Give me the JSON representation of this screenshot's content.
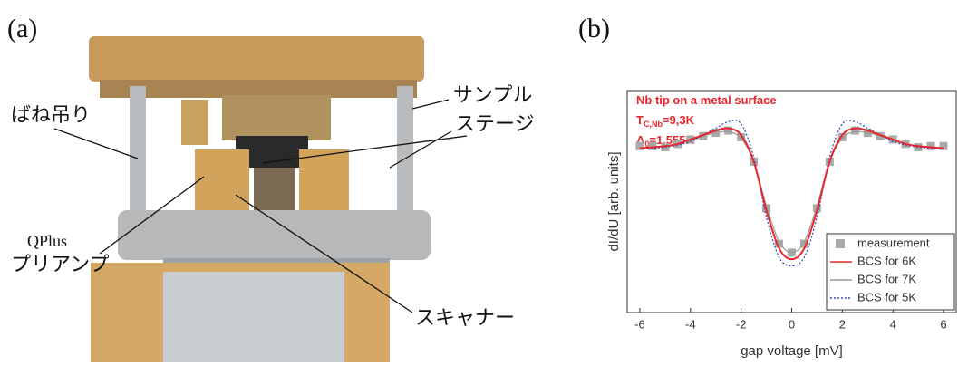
{
  "panel_a": {
    "label": "(a)",
    "annotations": [
      "ばね吊り",
      "サンプル",
      "ステージ",
      "QPlus",
      "プリアンプ",
      "スキャナー"
    ]
  },
  "chart_data": {
    "type": "line",
    "label": "(b)",
    "xlabel": "gap voltage  [mV]",
    "ylabel": "dI/dU   [arb. units]",
    "annotations": [
      [
        "Nb tip on a metal surface"
      ],
      [
        "T",
        "C,Nb",
        "=9,3K"
      ],
      [
        "Δ",
        "0",
        "=1,555K"
      ]
    ],
    "annotation_color": "#e8262c",
    "x": [
      -6,
      -5.5,
      -5,
      -4.5,
      -4,
      -3.5,
      -3,
      -2.5,
      -2,
      -1.5,
      -1,
      -0.5,
      0,
      0.5,
      1,
      1.5,
      2,
      2.5,
      3,
      3.5,
      4,
      4.5,
      5,
      5.5,
      6
    ],
    "series": [
      {
        "name": "measurement",
        "color": "#aaaaaa",
        "marker": "square",
        "values": [
          0.75,
          0.75,
          0.745,
          0.76,
          0.78,
          0.795,
          0.81,
          0.82,
          0.79,
          0.68,
          0.47,
          0.31,
          0.27,
          0.31,
          0.47,
          0.68,
          0.79,
          0.82,
          0.81,
          0.795,
          0.78,
          0.76,
          0.745,
          0.75,
          0.75
        ]
      },
      {
        "name": "BCS for 6K",
        "color": "#e8262c",
        "dash": "solid",
        "values": [
          0.74,
          0.745,
          0.75,
          0.76,
          0.78,
          0.8,
          0.82,
          0.83,
          0.8,
          0.68,
          0.46,
          0.29,
          0.24,
          0.29,
          0.46,
          0.68,
          0.8,
          0.83,
          0.82,
          0.8,
          0.78,
          0.76,
          0.75,
          0.745,
          0.74
        ]
      },
      {
        "name": "BCS for 7K",
        "color": "#999999",
        "dash": "solid",
        "values": [
          0.74,
          0.745,
          0.75,
          0.76,
          0.775,
          0.795,
          0.81,
          0.815,
          0.785,
          0.68,
          0.48,
          0.32,
          0.27,
          0.32,
          0.48,
          0.68,
          0.785,
          0.815,
          0.81,
          0.795,
          0.775,
          0.76,
          0.75,
          0.745,
          0.74
        ]
      },
      {
        "name": "BCS for 5K",
        "color": "#3344bb",
        "dash": "dotted",
        "values": [
          0.74,
          0.74,
          0.745,
          0.755,
          0.77,
          0.8,
          0.83,
          0.86,
          0.85,
          0.7,
          0.43,
          0.25,
          0.21,
          0.25,
          0.43,
          0.7,
          0.85,
          0.86,
          0.83,
          0.8,
          0.77,
          0.755,
          0.745,
          0.74,
          0.74
        ]
      }
    ],
    "xlim": [
      -6.5,
      6.5
    ],
    "xticks": [
      -6,
      -4,
      -2,
      0,
      2,
      4,
      6
    ],
    "ylim": [
      0,
      1
    ],
    "legend": "lower right"
  }
}
